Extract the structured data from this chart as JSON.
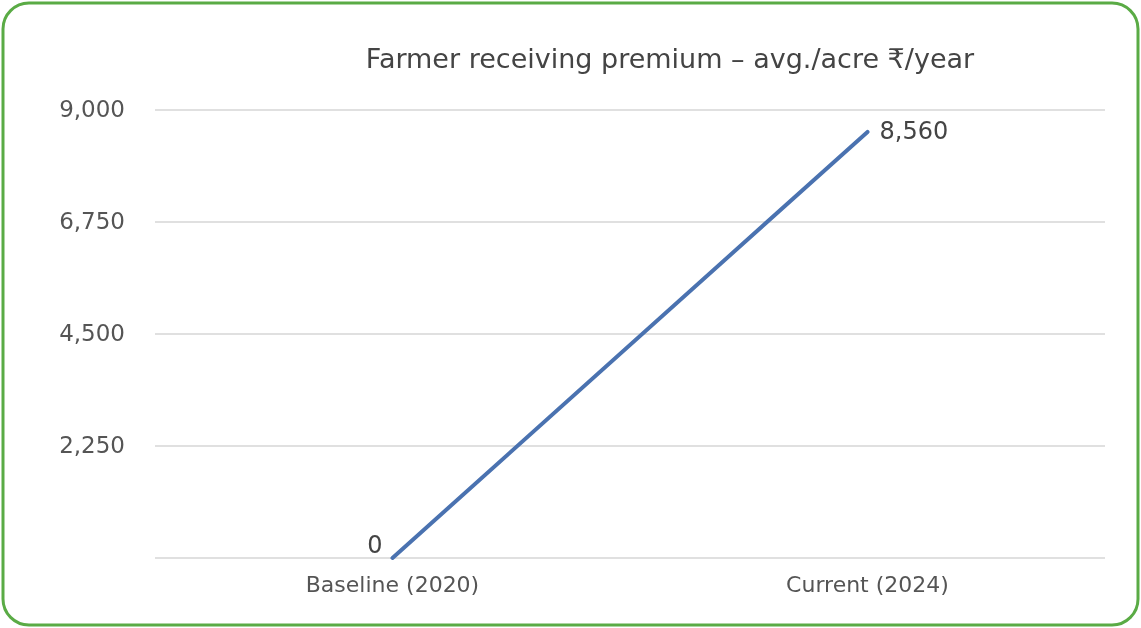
{
  "chart_data": {
    "type": "line",
    "title": "Farmer receiving premium – avg./acre  ₹/year",
    "categories": [
      "Baseline (2020)",
      "Current (2024)"
    ],
    "series": [
      {
        "color": "#4a72b0",
        "values": [
          0,
          8560
        ],
        "value_labels": [
          "0",
          "8,560"
        ]
      }
    ],
    "ylim": [
      0,
      9000
    ],
    "yticks": [
      {
        "value": 0,
        "label": null
      },
      {
        "value": 2250,
        "label": "2,250"
      },
      {
        "value": 4500,
        "label": "4,500"
      },
      {
        "value": 6750,
        "label": "6,750"
      },
      {
        "value": 9000,
        "label": "9,000"
      }
    ],
    "grid": "y",
    "marker": "none",
    "line_style": "solid"
  }
}
